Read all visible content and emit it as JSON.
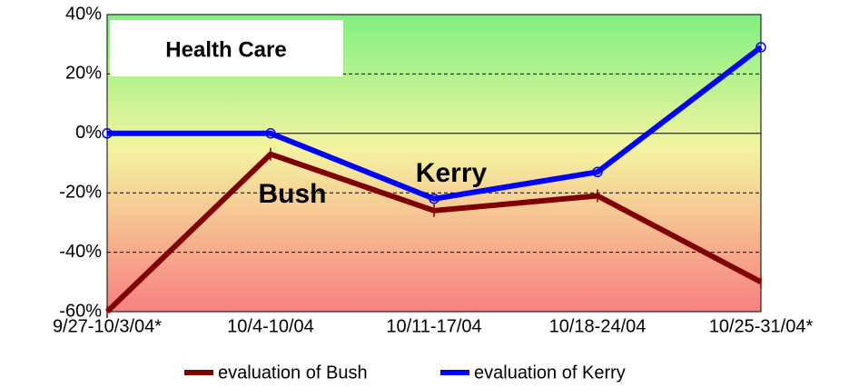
{
  "chart_data": {
    "type": "line",
    "annotations": [
      "Health Care",
      "Bush",
      "Kerry"
    ],
    "categories": [
      "9/27-10/3/04*",
      "10/4-10/04",
      "10/11-17/04",
      "10/18-24/04",
      "10/25-31/04*"
    ],
    "series": [
      {
        "name": "evaluation of Bush",
        "color": "#800000",
        "values": [
          -60,
          -7,
          -26,
          -21,
          -50
        ]
      },
      {
        "name": "evaluation of Kerry",
        "color": "#0000ff",
        "values": [
          0,
          0,
          -22,
          -13,
          29
        ]
      }
    ],
    "ylim": [
      -60,
      40
    ],
    "yticks": [
      {
        "value": -60,
        "label": "-60%"
      },
      {
        "value": -40,
        "label": "-40%"
      },
      {
        "value": -20,
        "label": "-20%"
      },
      {
        "value": 0,
        "label": "0%"
      },
      {
        "value": 20,
        "label": "20%"
      },
      {
        "value": 40,
        "label": "40%"
      }
    ],
    "grid": true
  }
}
